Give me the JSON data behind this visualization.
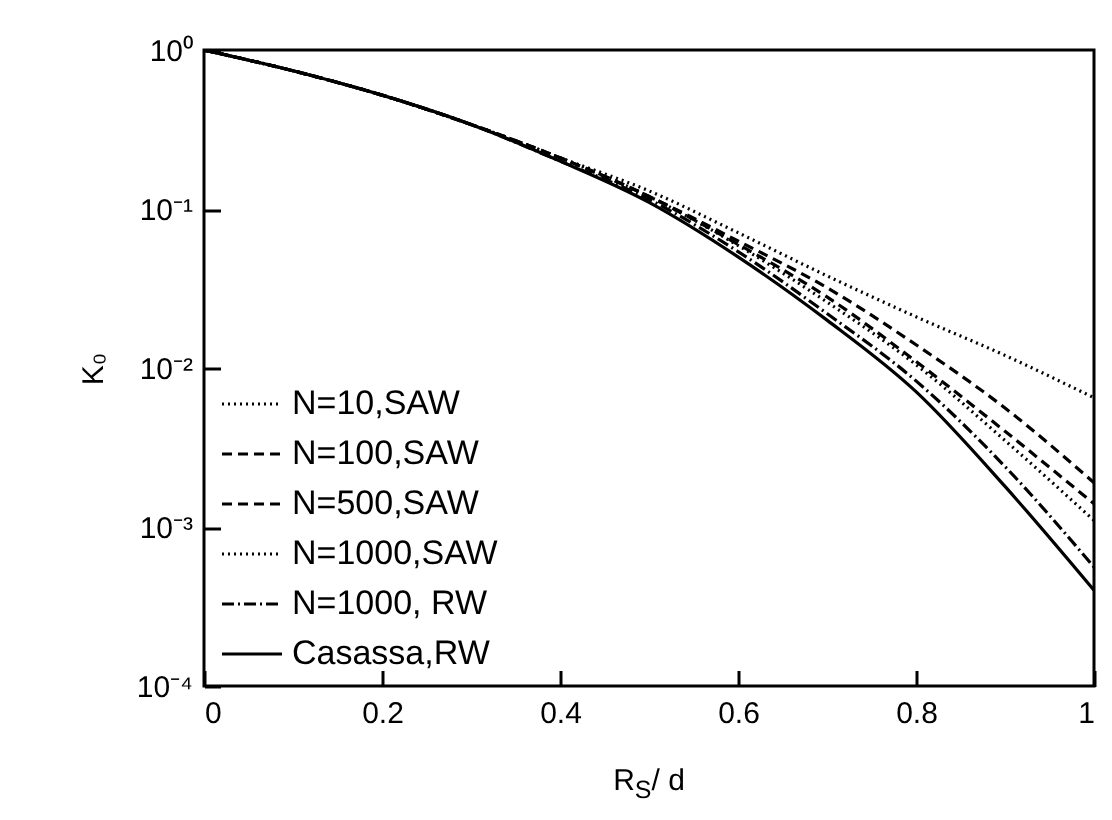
{
  "chart_data": {
    "type": "line",
    "xlabel": "R$_{S}$/ d",
    "ylabel": "K₀",
    "log": "y",
    "xlim": [
      0,
      1
    ],
    "ylim": [
      0.0001,
      1
    ],
    "xticks": [
      0,
      0.2,
      0.4,
      0.6,
      0.8,
      1
    ],
    "yticks": [
      {
        "value": 1,
        "label": "10⁰"
      },
      {
        "value": 0.1,
        "label": "10⁻¹"
      },
      {
        "value": 0.01,
        "label": "10⁻²"
      },
      {
        "value": 0.001,
        "label": "10⁻³"
      },
      {
        "value": 0.0001,
        "label": "10⁻⁴"
      }
    ],
    "x": [
      0,
      0.1,
      0.2,
      0.3,
      0.4,
      0.5,
      0.6,
      0.7,
      0.8,
      0.9,
      1
    ],
    "legend": "bottom left",
    "grid": false,
    "series": [
      {
        "name": "N=10,SAW",
        "color": "#000000",
        "line_style": "dotted",
        "values": [
          1,
          0.74,
          0.52,
          0.34,
          0.21,
          0.13,
          0.071,
          0.038,
          0.021,
          0.012,
          0.0065
        ]
      },
      {
        "name": "N=100,SAW",
        "color": "#000000",
        "line_style": "dashed",
        "values": [
          1,
          0.74,
          0.52,
          0.34,
          0.21,
          0.12,
          0.063,
          0.032,
          0.014,
          0.0056,
          0.0019
        ]
      },
      {
        "name": "N=500,SAW",
        "color": "#000000",
        "line_style": "dashed",
        "values": [
          1,
          0.74,
          0.52,
          0.34,
          0.21,
          0.12,
          0.06,
          0.028,
          0.011,
          0.004,
          0.0014
        ]
      },
      {
        "name": "N=1000,SAW",
        "color": "#000000",
        "line_style": "dotted",
        "values": [
          1,
          0.74,
          0.52,
          0.34,
          0.21,
          0.12,
          0.059,
          0.026,
          0.0105,
          0.0035,
          0.0011
        ]
      },
      {
        "name": "N=1000, RW",
        "color": "#000000",
        "line_style": "dashdot",
        "values": [
          1,
          0.74,
          0.52,
          0.34,
          0.2,
          0.115,
          0.054,
          0.022,
          0.0083,
          0.0024,
          0.00056
        ]
      },
      {
        "name": "Casassa,RW",
        "color": "#000000",
        "line_style": "solid",
        "values": [
          1,
          0.74,
          0.52,
          0.34,
          0.2,
          0.11,
          0.05,
          0.02,
          0.0071,
          0.0018,
          0.0004
        ]
      }
    ]
  }
}
